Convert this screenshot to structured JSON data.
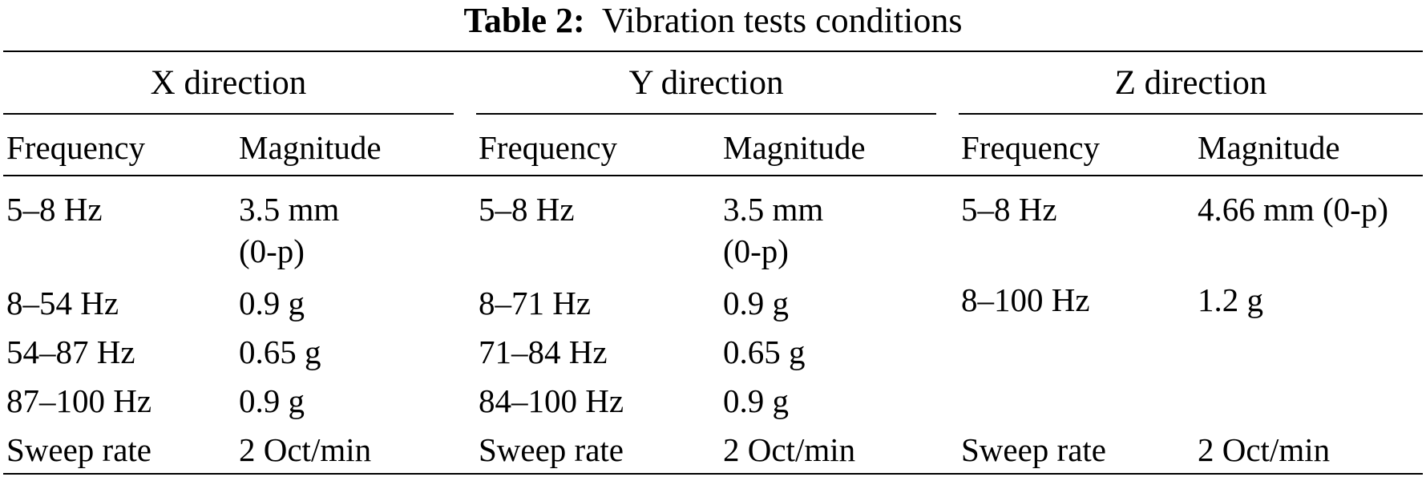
{
  "caption": {
    "label": "Table 2:",
    "title": "Vibration tests conditions"
  },
  "groups": [
    {
      "title": "X direction"
    },
    {
      "title": "Y direction"
    },
    {
      "title": "Z direction"
    }
  ],
  "subheaders": {
    "frequency": "Frequency",
    "magnitude": "Magnitude"
  },
  "rows": {
    "x": [
      {
        "freq": "5–8 Hz",
        "mag": "3.5 mm",
        "mag2": "(0-p)"
      },
      {
        "freq": "8–54 Hz",
        "mag": "0.9 g"
      },
      {
        "freq": "54–87 Hz",
        "mag": "0.65 g"
      },
      {
        "freq": "87–100 Hz",
        "mag": "0.9 g"
      },
      {
        "freq": "Sweep rate",
        "mag": "2 Oct/min"
      }
    ],
    "y": [
      {
        "freq": "5–8 Hz",
        "mag": "3.5 mm",
        "mag2": "(0-p)"
      },
      {
        "freq": "8–71 Hz",
        "mag": "0.9 g"
      },
      {
        "freq": "71–84 Hz",
        "mag": "0.65 g"
      },
      {
        "freq": "84–100 Hz",
        "mag": "0.9 g"
      },
      {
        "freq": "Sweep rate",
        "mag": "2 Oct/min"
      }
    ],
    "z": [
      {
        "freq": "5–8 Hz",
        "mag": "4.66 mm (0-p)"
      },
      {
        "freq": "8–100 Hz",
        "mag": "1.2 g"
      },
      {
        "freq": "Sweep rate",
        "mag": "2 Oct/min"
      }
    ]
  }
}
